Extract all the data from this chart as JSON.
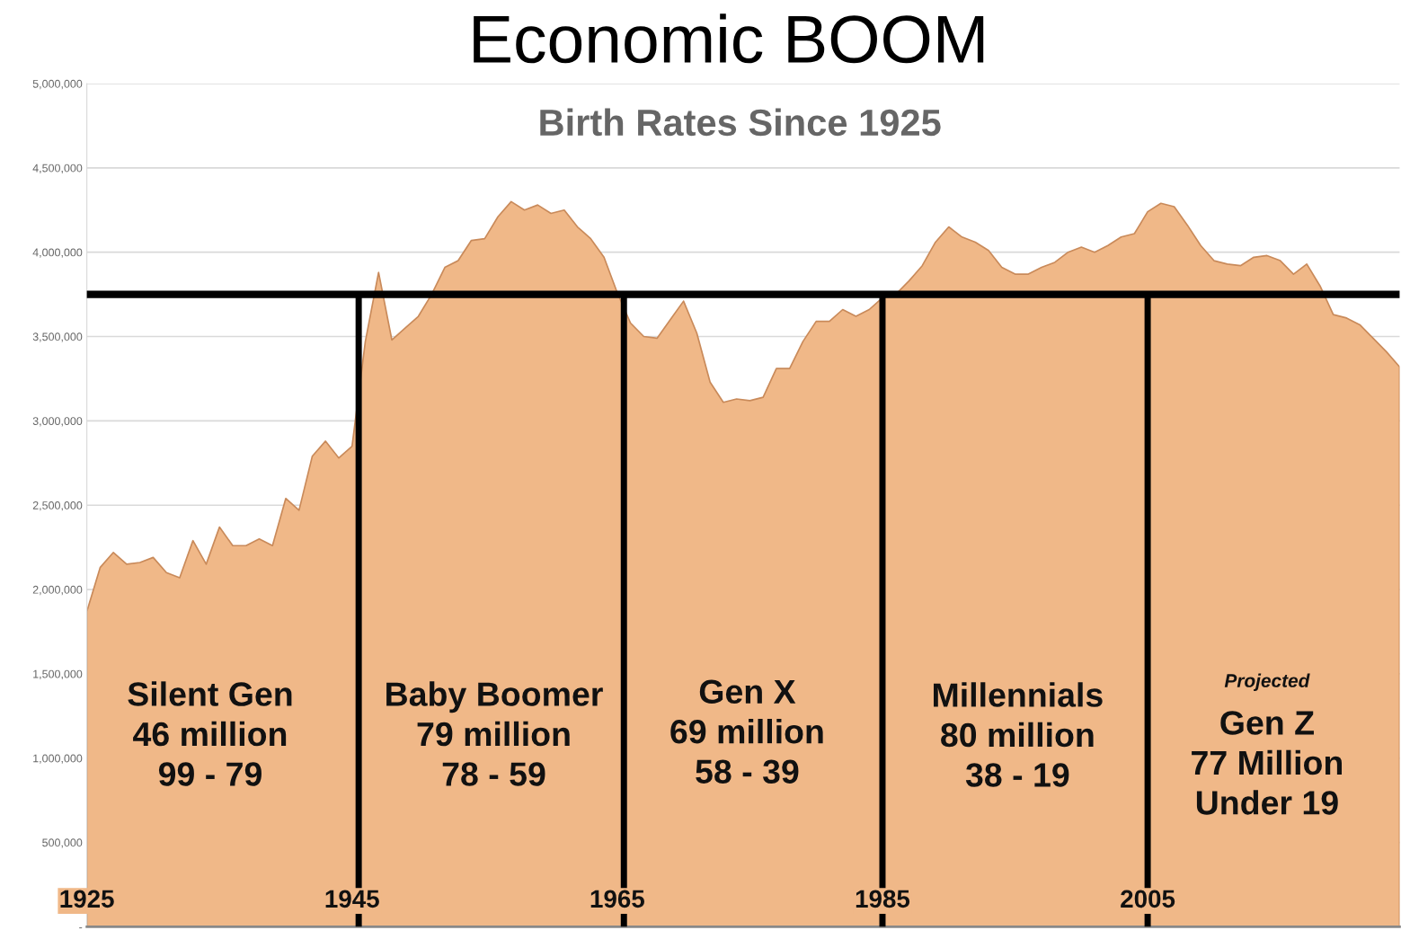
{
  "chart_data": {
    "type": "area",
    "title": "Economic BOOM",
    "subtitle": "Birth Rates Since 1925",
    "x": [
      1925,
      1926,
      1927,
      1928,
      1929,
      1930,
      1931,
      1932,
      1933,
      1934,
      1935,
      1936,
      1937,
      1938,
      1939,
      1940,
      1941,
      1942,
      1943,
      1944,
      1945,
      1946,
      1947,
      1948,
      1949,
      1950,
      1951,
      1952,
      1953,
      1954,
      1955,
      1956,
      1957,
      1958,
      1959,
      1960,
      1961,
      1962,
      1963,
      1964,
      1965,
      1966,
      1967,
      1968,
      1969,
      1970,
      1971,
      1972,
      1973,
      1974,
      1975,
      1976,
      1977,
      1978,
      1979,
      1980,
      1981,
      1982,
      1983,
      1984,
      1985,
      1986,
      1987,
      1988,
      1989,
      1990,
      1991,
      1992,
      1993,
      1994,
      1995,
      1996,
      1997,
      1998,
      1999,
      2000,
      2001,
      2002,
      2003,
      2004,
      2005,
      2006,
      2007,
      2008,
      2009,
      2010,
      2011,
      2012,
      2013,
      2014,
      2015,
      2016,
      2017,
      2018,
      2019,
      2020,
      2021,
      2022,
      2023,
      2024
    ],
    "series": [
      {
        "color": "#f0b888",
        "values": [
          1870000,
          2130000,
          2220000,
          2150000,
          2160000,
          2190000,
          2100000,
          2070000,
          2290000,
          2150000,
          2370000,
          2260000,
          2260000,
          2300000,
          2260000,
          2540000,
          2470000,
          2790000,
          2880000,
          2780000,
          2850000,
          3470000,
          3880000,
          3480000,
          3550000,
          3620000,
          3750000,
          3910000,
          3950000,
          4070000,
          4080000,
          4210000,
          4300000,
          4250000,
          4280000,
          4230000,
          4250000,
          4150000,
          4080000,
          3970000,
          3760000,
          3580000,
          3500000,
          3490000,
          3600000,
          3710000,
          3520000,
          3230000,
          3110000,
          3130000,
          3120000,
          3140000,
          3310000,
          3310000,
          3470000,
          3590000,
          3590000,
          3660000,
          3620000,
          3660000,
          3730000,
          3750000,
          3830000,
          3920000,
          4060000,
          4150000,
          4090000,
          4060000,
          4010000,
          3910000,
          3870000,
          3870000,
          3910000,
          3940000,
          4000000,
          4030000,
          4000000,
          4040000,
          4090000,
          4110000,
          4240000,
          4290000,
          4270000,
          4160000,
          4040000,
          3950000,
          3930000,
          3920000,
          3970000,
          3980000,
          3950000,
          3870000,
          3930000,
          3800000,
          3630000,
          3610000,
          3570000,
          3490000,
          3410000,
          3320000
        ]
      }
    ],
    "xlim": [
      1925,
      2024
    ],
    "ylim": [
      0,
      5000000
    ],
    "yticks": [
      {
        "value": 0,
        "label": "-"
      },
      {
        "value": 500000,
        "label": "500,000"
      },
      {
        "value": 1000000,
        "label": "1,000,000"
      },
      {
        "value": 1500000,
        "label": "1,500,000"
      },
      {
        "value": 2000000,
        "label": "2,000,000"
      },
      {
        "value": 2500000,
        "label": "2,500,000"
      },
      {
        "value": 3000000,
        "label": "3,000,000"
      },
      {
        "value": 3500000,
        "label": "3,500,000"
      },
      {
        "value": 4000000,
        "label": "4,000,000"
      },
      {
        "value": 4500000,
        "label": "4,500,000"
      },
      {
        "value": 5000000,
        "label": "5,000,000"
      }
    ],
    "xticks": [
      1925,
      1945,
      1965,
      1985,
      2005
    ],
    "grid": "y",
    "legend": false,
    "ref_lines": [
      {
        "axis": "y",
        "value": 3750000,
        "color": "#000000"
      },
      {
        "axis": "x",
        "value": 1945.5,
        "color": "#000000"
      },
      {
        "axis": "x",
        "value": 1965.5,
        "color": "#000000"
      },
      {
        "axis": "x",
        "value": 1985,
        "color": "#000000"
      },
      {
        "axis": "x",
        "value": 2005,
        "color": "#000000"
      }
    ],
    "annotations": [
      "Silent Gen\n46 million\n99 - 79",
      "Baby Boomer\n79 million\n78 - 59",
      "Gen X\n69 million\n58 - 39",
      "Millennials\n80 million\n38 - 19",
      "Gen Z\n77 Million\nUnder 19",
      "Projected"
    ]
  }
}
